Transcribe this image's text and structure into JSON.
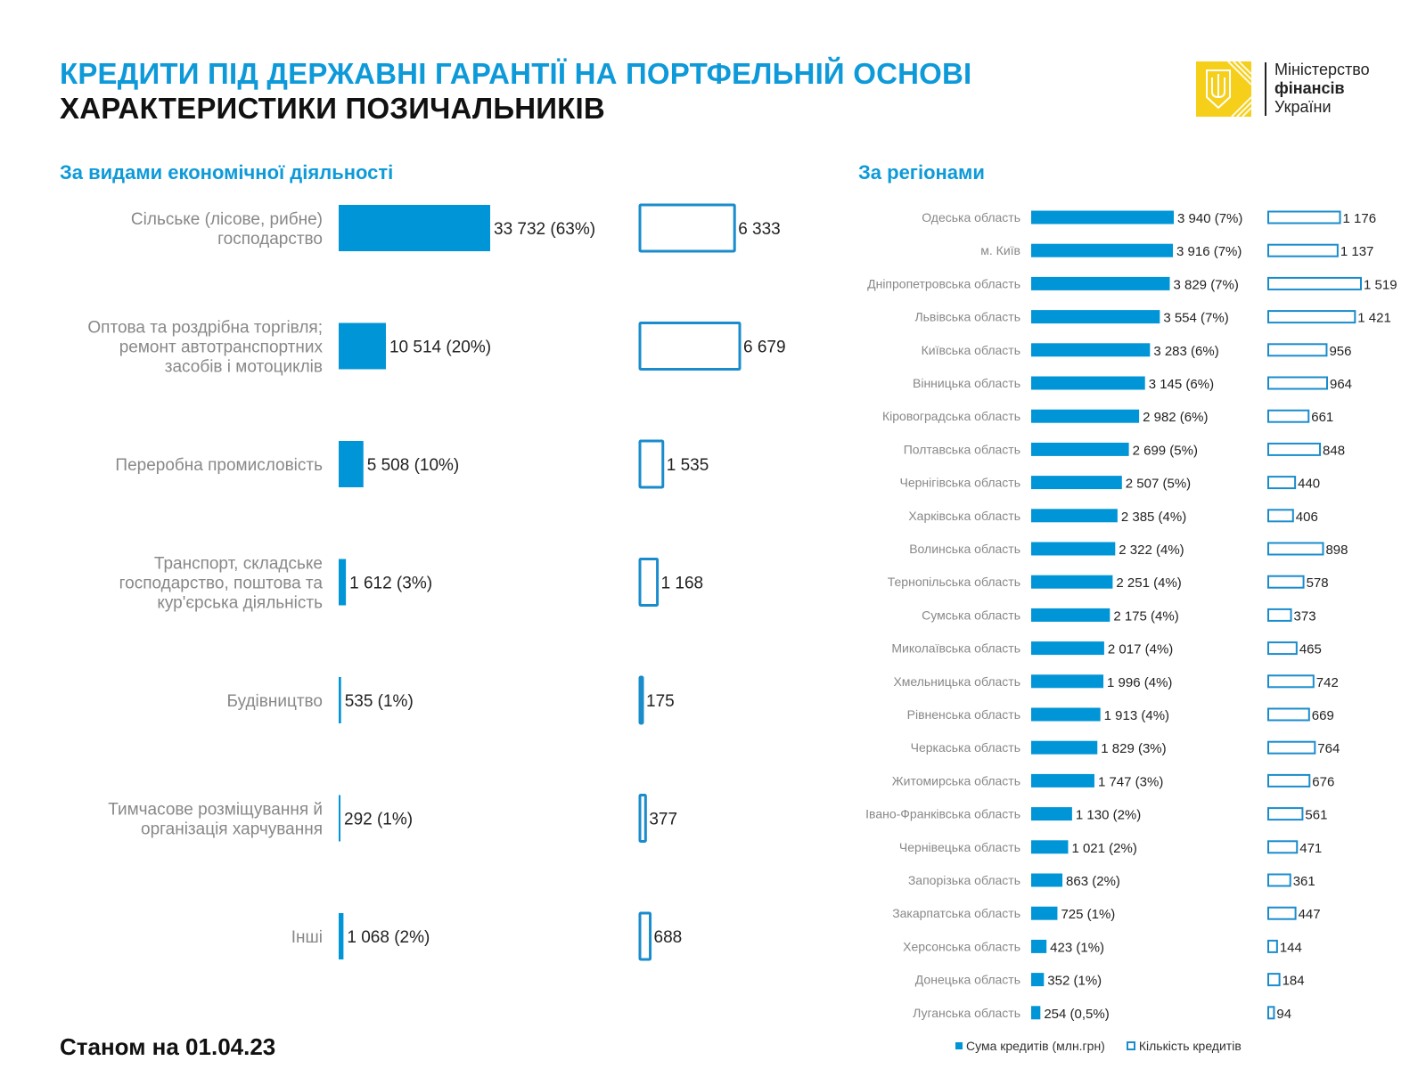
{
  "header": {
    "title_line1": "КРЕДИТИ ПІД ДЕРЖАВНІ ГАРАНТІЇ НА ПОРТФЕЛЬНІЙ ОСНОВІ",
    "title_line2": "ХАРАКТЕРИСТИКИ ПОЗИЧАЛЬНИКІВ",
    "logo": {
      "line1": "Міністерство",
      "line2": "фінансів",
      "line3": "України",
      "icon": "trident-icon"
    }
  },
  "footer": {
    "date_label": "Станом на 01.04.23"
  },
  "legend": {
    "sum_label": "Сума кредитів (млн.грн)",
    "count_label": "Кількість кредитів"
  },
  "colors": {
    "accent": "#0095d6",
    "outline": "#1a8ccc",
    "label_gray": "#888888",
    "value_text": "#222222"
  },
  "chart_data": [
    {
      "type": "bar",
      "title": "За видами економічної діяльності",
      "orientation": "horizontal",
      "categories": [
        [
          "Сільське (лісове, рибне)",
          "господарство"
        ],
        [
          "Оптова та роздрібна торгівля;",
          "ремонт автотранспортних",
          "засобів і мотоциклів"
        ],
        [
          "Переробна промисловість"
        ],
        [
          "Транспорт, складське",
          "господарство, поштова та",
          "кур'єрська діяльність"
        ],
        [
          "Будівництво"
        ],
        [
          "Тимчасове розміщування й",
          "організація харчування"
        ],
        [
          "Інші"
        ]
      ],
      "series": [
        {
          "name": "Сума кредитів (млн.грн)",
          "style": "filled",
          "values": [
            33732,
            10514,
            5508,
            1612,
            535,
            292,
            1068
          ],
          "labels": [
            "33 732 (63%)",
            "10 514 (20%)",
            "5 508 (10%)",
            "1 612 (3%)",
            "535 (1%)",
            "292 (1%)",
            "1 068 (2%)"
          ]
        },
        {
          "name": "Кількість кредитів",
          "style": "outline",
          "values": [
            6333,
            6679,
            1535,
            1168,
            175,
            377,
            688
          ],
          "labels": [
            "6 333",
            "6 679",
            "1 535",
            "1 168",
            "175",
            "377",
            "688"
          ]
        }
      ]
    },
    {
      "type": "bar",
      "title": "За регіонами",
      "orientation": "horizontal",
      "categories": [
        "Одеська область",
        "м. Київ",
        "Дніпропетровська область",
        "Львівська область",
        "Київська область",
        "Вінницька область",
        "Кіровоградська область",
        "Полтавська область",
        "Чернігівська область",
        "Харківська область",
        "Волинська область",
        "Тернопільська область",
        "Сумська область",
        "Миколаївська область",
        "Хмельницька область",
        "Рівненська область",
        "Черкаська область",
        "Житомирська область",
        "Івано-Франківська область",
        "Чернівецька область",
        "Запорізька область",
        "Закарпатська область",
        "Херсонська область",
        "Донецька область",
        "Луганська область"
      ],
      "series": [
        {
          "name": "Сума кредитів (млн.грн)",
          "style": "filled",
          "values": [
            3940,
            3916,
            3829,
            3554,
            3283,
            3145,
            2982,
            2699,
            2507,
            2385,
            2322,
            2251,
            2175,
            2017,
            1996,
            1913,
            1829,
            1747,
            1130,
            1021,
            863,
            725,
            423,
            352,
            254
          ],
          "labels": [
            "3 940 (7%)",
            "3 916 (7%)",
            "3 829 (7%)",
            "3 554 (7%)",
            "3 283 (6%)",
            "3 145 (6%)",
            "2 982 (6%)",
            "2 699 (5%)",
            "2 507 (5%)",
            "2 385 (4%)",
            "2 322 (4%)",
            "2 251 (4%)",
            "2 175 (4%)",
            "2 017 (4%)",
            "1 996 (4%)",
            "1 913 (4%)",
            "1 829 (3%)",
            "1 747 (3%)",
            "1 130 (2%)",
            "1 021 (2%)",
            "863 (2%)",
            "725 (1%)",
            "423 (1%)",
            "352 (1%)",
            "254 (0,5%)"
          ]
        },
        {
          "name": "Кількість кредитів",
          "style": "outline",
          "values": [
            1176,
            1137,
            1519,
            1421,
            956,
            964,
            661,
            848,
            440,
            406,
            898,
            578,
            373,
            465,
            742,
            669,
            764,
            676,
            561,
            471,
            361,
            447,
            144,
            184,
            94
          ],
          "labels": [
            "1 176",
            "1 137",
            "1 519",
            "1 421",
            "956",
            "964",
            "661",
            "848",
            "440",
            "406",
            "898",
            "578",
            "373",
            "465",
            "742",
            "669",
            "764",
            "676",
            "561",
            "471",
            "361",
            "447",
            "144",
            "184",
            "94"
          ]
        }
      ]
    }
  ]
}
